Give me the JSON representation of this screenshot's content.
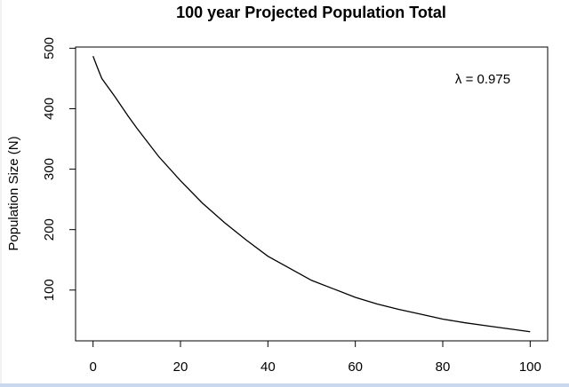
{
  "chart_data": {
    "type": "line",
    "title": "100 year Projected Population Total",
    "xlabel": "",
    "ylabel": "Population Size (N)",
    "annotation": "λ = 0.975",
    "xlim": [
      -4,
      104
    ],
    "ylim": [
      16,
      502
    ],
    "x_ticks": [
      "0",
      "20",
      "40",
      "60",
      "80",
      "100"
    ],
    "y_ticks": [
      "100",
      "200",
      "300",
      "400",
      "500"
    ],
    "legend": "none",
    "grid": false,
    "series": [
      {
        "x": [
          0,
          1,
          2,
          3,
          5,
          8,
          10,
          15,
          20,
          25,
          30,
          35,
          40,
          45,
          50,
          55,
          60,
          65,
          70,
          75,
          80,
          85,
          90,
          95,
          100
        ],
        "values": [
          487,
          468,
          450,
          440,
          420,
          388,
          368,
          321,
          281,
          244,
          212,
          183,
          156,
          136,
          116,
          102,
          88,
          77,
          68,
          60,
          52,
          46,
          41,
          36,
          31
        ]
      }
    ]
  }
}
